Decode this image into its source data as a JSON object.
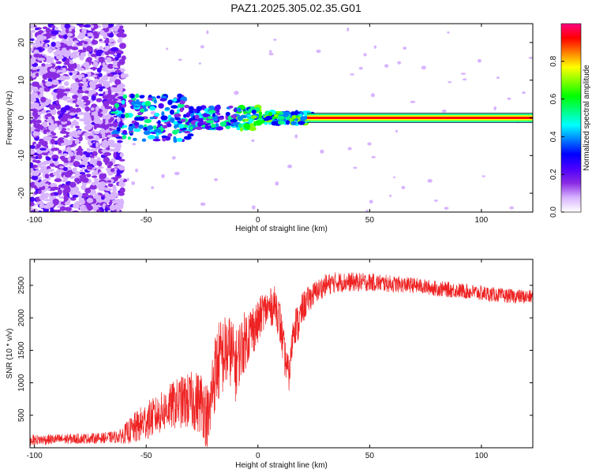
{
  "title": "PAZ1.2025.305.02.35.G01",
  "chart_data": [
    {
      "type": "heatmap",
      "xlabel": "Height of straight line (km)",
      "ylabel": "Frequency (Hz)",
      "xlim": [
        -102,
        123
      ],
      "ylim": [
        -25,
        25
      ],
      "xticks": [
        -100,
        -50,
        0,
        50,
        100
      ],
      "yticks": [
        -20,
        -10,
        0,
        10,
        20
      ],
      "tone_frequency_hz": 0,
      "colorbar": {
        "label": "Normalized spectral amplitude",
        "range": [
          0,
          1
        ],
        "ticks": [
          "0.0",
          "0.2",
          "0.4",
          "0.6",
          "0.8"
        ],
        "colors": [
          "#ffffff",
          "#d8b4ff",
          "#8a2be2",
          "#4b00ff",
          "#0000ff",
          "#0080ff",
          "#00ffff",
          "#00ff80",
          "#00ff00",
          "#80ff00",
          "#ffff00",
          "#ff8000",
          "#ff0000",
          "#ff0080"
        ]
      }
    },
    {
      "type": "line",
      "xlabel": "Height of straight line (km)",
      "ylabel": "SNR (10 * v/v)",
      "xlim": [
        -102,
        123
      ],
      "ylim": [
        0,
        2900
      ],
      "xticks": [
        -100,
        -50,
        0,
        50,
        100
      ],
      "yticks": [
        500,
        1000,
        1500,
        2000,
        2500
      ],
      "color": "#ee2222",
      "series": [
        {
          "name": "SNR",
          "x": [
            -102,
            -90,
            -80,
            -70,
            -62,
            -55,
            -50,
            -45,
            -40,
            -35,
            -30,
            -25,
            -22,
            -20,
            -18,
            -15,
            -12,
            -10,
            -8,
            -5,
            -2,
            0,
            2,
            5,
            8,
            10,
            12,
            14,
            16,
            18,
            20,
            23,
            26,
            30,
            35,
            40,
            50,
            60,
            70,
            80,
            90,
            100,
            110,
            123
          ],
          "base": [
            120,
            130,
            140,
            150,
            170,
            300,
            420,
            500,
            620,
            700,
            720,
            700,
            400,
            1050,
            1300,
            1450,
            1500,
            1250,
            1500,
            1700,
            1850,
            1900,
            2100,
            2150,
            2200,
            1900,
            1400,
            1100,
            1900,
            1900,
            2150,
            2300,
            2400,
            2500,
            2550,
            2550,
            2550,
            2520,
            2500,
            2450,
            2420,
            2380,
            2340,
            2320
          ],
          "noise": [
            80,
            80,
            80,
            80,
            100,
            250,
            300,
            300,
            350,
            400,
            450,
            500,
            550,
            600,
            650,
            600,
            550,
            550,
            500,
            450,
            400,
            350,
            300,
            300,
            300,
            350,
            300,
            250,
            300,
            300,
            250,
            200,
            180,
            170,
            160,
            150,
            140,
            130,
            120,
            120,
            120,
            120,
            110,
            110
          ]
        }
      ]
    }
  ]
}
